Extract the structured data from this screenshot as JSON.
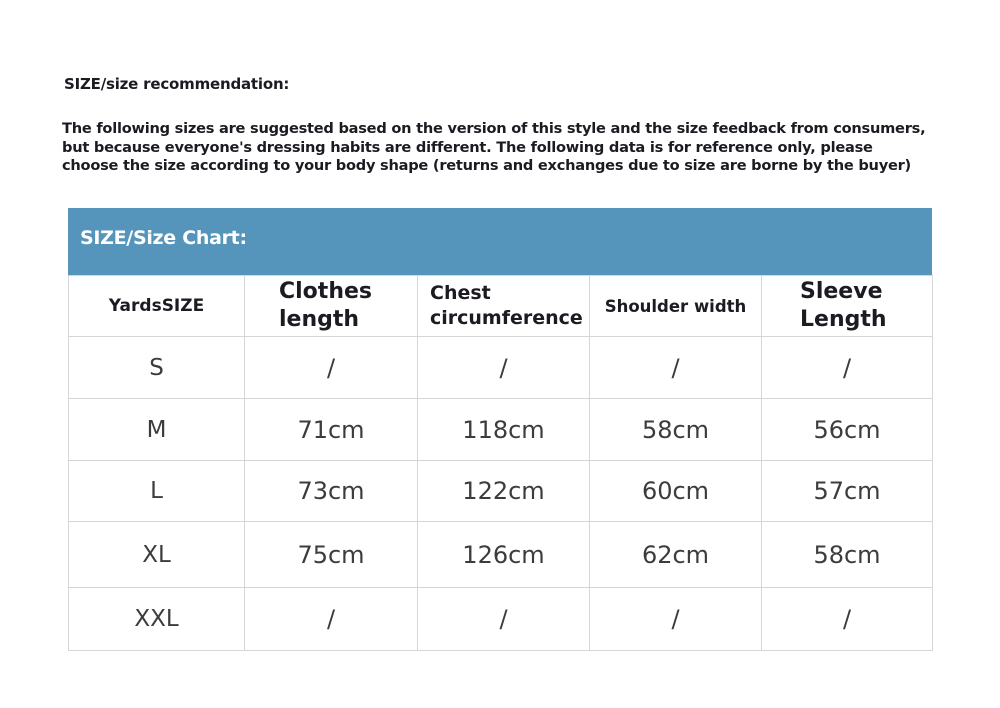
{
  "recommendation_title": "SIZE/size recommendation:",
  "intro_lines": [
    "The following sizes are suggested based on the version of this style and the size feedback from consumers,",
    "but because everyone's dressing habits are different. The following data is for reference only, please",
    "choose the size according to your body shape (returns and exchanges due to size are borne by the buyer)"
  ],
  "chart_title": "SIZE/Size Chart:",
  "header_color": "#5595bb",
  "columns": [
    {
      "line1": "YardsSIZE",
      "line2": ""
    },
    {
      "line1": "Clothes",
      "line2": "length"
    },
    {
      "line1": "Chest",
      "line2": "circumference"
    },
    {
      "line1": "Shoulder width",
      "line2": ""
    },
    {
      "line1": "Sleeve",
      "line2": "Length"
    }
  ],
  "rows": [
    [
      "S",
      "/",
      "/",
      "/",
      "/"
    ],
    [
      "M",
      "71cm",
      "118cm",
      "58cm",
      "56cm"
    ],
    [
      "L",
      "73cm",
      "122cm",
      "60cm",
      "57cm"
    ],
    [
      "XL",
      "75cm",
      "126cm",
      "62cm",
      "58cm"
    ],
    [
      "XXL",
      "/",
      "/",
      "/",
      "/"
    ]
  ]
}
